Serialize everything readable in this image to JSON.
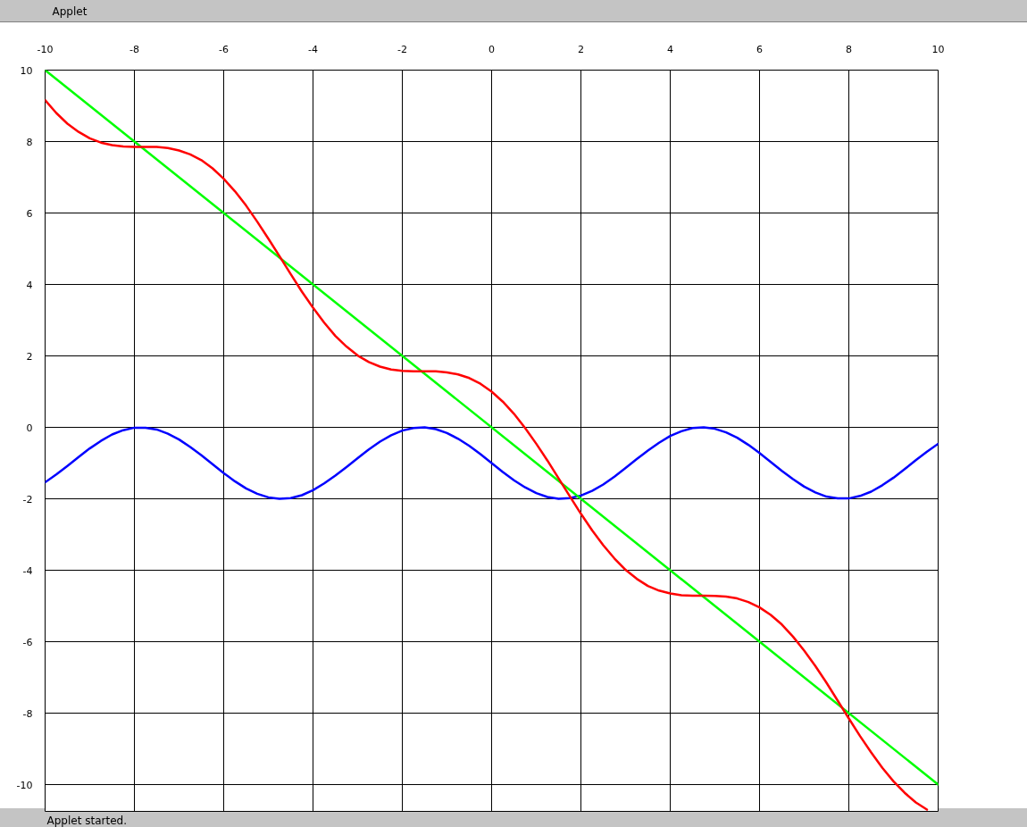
{
  "chart_data": {
    "type": "line",
    "title": "Applet",
    "annotations": [
      "Applet started."
    ],
    "x": [
      -10,
      -9.75,
      -9.5,
      -9.25,
      -9,
      -8.75,
      -8.5,
      -8.25,
      -8,
      -7.75,
      -7.5,
      -7.25,
      -7,
      -6.75,
      -6.5,
      -6.25,
      -6,
      -5.75,
      -5.5,
      -5.25,
      -5,
      -4.75,
      -4.5,
      -4.25,
      -4,
      -3.75,
      -3.5,
      -3.25,
      -3,
      -2.75,
      -2.5,
      -2.25,
      -2,
      -1.75,
      -1.5,
      -1.25,
      -1,
      -0.75,
      -0.5,
      -0.25,
      0,
      0.25,
      0.5,
      0.75,
      1,
      1.25,
      1.5,
      1.75,
      2,
      2.25,
      2.5,
      2.75,
      3,
      3.25,
      3.5,
      3.75,
      4,
      4.25,
      4.5,
      4.75,
      5,
      5.25,
      5.5,
      5.75,
      6,
      6.25,
      6.5,
      6.75,
      7,
      7.25,
      7.5,
      7.75,
      8,
      8.25,
      8.5,
      8.75,
      9,
      9.25,
      9.5,
      9.75,
      10
    ],
    "xlim": [
      -10,
      10
    ],
    "ylim": [
      -10.75,
      10
    ],
    "xticks": [
      -10,
      -8,
      -6,
      -4,
      -2,
      0,
      2,
      4,
      6,
      8,
      10
    ],
    "yticks": [
      -10,
      -8,
      -6,
      -4,
      -2,
      0,
      2,
      4,
      6,
      8,
      10
    ],
    "grid": true,
    "series": [
      {
        "color": "#0000ff",
        "values": [
          -1.54,
          -1.32,
          -1.08,
          -0.83,
          -0.59,
          -0.38,
          -0.2,
          -0.08,
          -0.01,
          -0.01,
          -0.06,
          -0.18,
          -0.34,
          -0.55,
          -0.78,
          -1.03,
          -1.28,
          -1.51,
          -1.71,
          -1.86,
          -1.96,
          -2,
          -1.98,
          -1.9,
          -1.76,
          -1.57,
          -1.35,
          -1.11,
          -0.86,
          -0.62,
          -0.4,
          -0.22,
          -0.09,
          -0.02,
          0,
          -0.05,
          -0.16,
          -0.32,
          -0.52,
          -0.75,
          -1,
          -1.25,
          -1.48,
          -1.68,
          -1.84,
          -1.95,
          -2,
          -1.98,
          -1.91,
          -1.78,
          -1.6,
          -1.38,
          -1.14,
          -0.89,
          -0.65,
          -0.43,
          -0.24,
          -0.11,
          -0.02,
          0,
          -0.04,
          -0.14,
          -0.29,
          -0.49,
          -0.72,
          -0.97,
          -1.22,
          -1.45,
          -1.66,
          -1.82,
          -1.94,
          -1.99,
          -1.99,
          -1.92,
          -1.8,
          -1.62,
          -1.41,
          -1.17,
          -0.92,
          -0.68,
          -0.46
        ]
      },
      {
        "color": "#00ff00",
        "x": [
          -10,
          10
        ],
        "values": [
          10,
          -10
        ]
      },
      {
        "color": "#ff0000",
        "x": [
          -10,
          -9.75,
          -9.5,
          -9.25,
          -9,
          -8.75,
          -8.5,
          -8.25,
          -8,
          -7.75,
          -7.5,
          -7.25,
          -7,
          -6.75,
          -6.5,
          -6.25,
          -6,
          -5.75,
          -5.5,
          -5.25,
          -5,
          -4.75,
          -4.5,
          -4.25,
          -4,
          -3.75,
          -3.5,
          -3.25,
          -3,
          -2.75,
          -2.5,
          -2.25,
          -2,
          -1.75,
          -1.5,
          -1.25,
          -1,
          -0.75,
          -0.5,
          -0.25,
          0,
          0.25,
          0.5,
          0.75,
          1,
          1.25,
          1.5,
          1.75,
          2,
          2.25,
          2.5,
          2.75,
          3,
          3.25,
          3.5,
          3.75,
          4,
          4.25,
          4.5,
          4.75,
          5,
          5.25,
          5.5,
          5.75,
          6,
          6.25,
          6.5,
          6.75,
          7,
          7.25,
          7.5,
          7.75,
          8,
          8.25,
          8.5,
          8.75,
          9,
          9.25,
          9.5,
          9.75
        ],
        "values": [
          9.16,
          8.8,
          8.5,
          8.27,
          8.09,
          7.97,
          7.9,
          7.86,
          7.85,
          7.85,
          7.85,
          7.82,
          7.75,
          7.64,
          7.48,
          7.25,
          6.96,
          6.61,
          6.21,
          5.76,
          5.28,
          4.79,
          4.29,
          3.8,
          3.35,
          2.93,
          2.56,
          2.26,
          2.01,
          1.83,
          1.7,
          1.62,
          1.58,
          1.57,
          1.57,
          1.57,
          1.54,
          1.48,
          1.38,
          1.22,
          1,
          0.72,
          0.38,
          -0.02,
          -0.46,
          -0.93,
          -1.43,
          -1.93,
          -2.42,
          -2.88,
          -3.3,
          -3.67,
          -3.99,
          -4.24,
          -4.44,
          -4.57,
          -4.65,
          -4.7,
          -4.71,
          -4.71,
          -4.72,
          -4.74,
          -4.79,
          -4.89,
          -5.04,
          -5.25,
          -5.52,
          -5.86,
          -6.25,
          -6.68,
          -7.15,
          -7.65,
          -8.15,
          -8.64,
          -9.1,
          -9.53,
          -9.91,
          -10.23,
          -10.5,
          -10.7
        ]
      }
    ]
  }
}
